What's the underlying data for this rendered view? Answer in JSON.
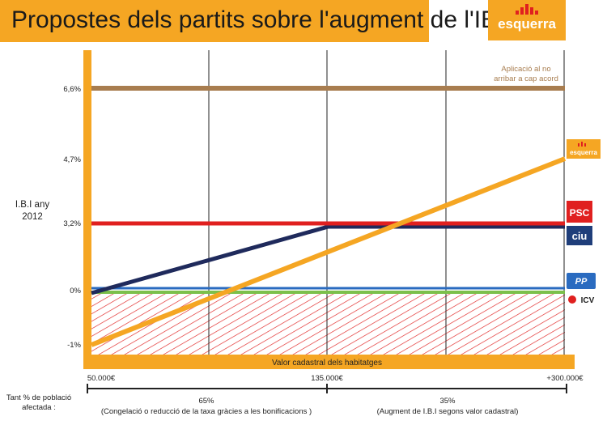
{
  "header": {
    "title": "Propostes dels partits sobre l'augment de l'IBI",
    "logo": "esquerra"
  },
  "colors": {
    "accent": "#f5a623",
    "brown": "#a87d4f",
    "red": "#e0201f",
    "navy": "#1f2a5c",
    "blue": "#2a6bc0",
    "green": "#7cc04b",
    "hatch": "#e0201f"
  },
  "chart_data": {
    "type": "line",
    "ylabel": "I.B.I any 2012",
    "xlabel": "Valor cadastral dels habitatges",
    "x_ticks": [
      "50.000€",
      "135.000€",
      "+300.000€"
    ],
    "y_ticks": [
      "6,6%",
      "4,7%",
      "3,2%",
      "0%",
      "-1%"
    ],
    "y_tick_values": [
      6.6,
      4.7,
      3.2,
      0,
      -1
    ],
    "ylim": [
      -1.4,
      7.9
    ],
    "annotation": "Aplicació al no arribar a cap acord",
    "series": [
      {
        "name": "Aplicació al no arribar a cap acord",
        "color": "#a87d4f",
        "points": [
          [
            0,
            6.6
          ],
          [
            3,
            6.6
          ]
        ]
      },
      {
        "name": "esquerra",
        "color": "#f5a623",
        "points": [
          [
            0,
            -1
          ],
          [
            3,
            4.7
          ]
        ]
      },
      {
        "name": "PSC",
        "color": "#e0201f",
        "points": [
          [
            0,
            3.2
          ],
          [
            3,
            3.2
          ]
        ]
      },
      {
        "name": "ciu",
        "color": "#1f2a5c",
        "points": [
          [
            0,
            0
          ],
          [
            1.5,
            3.2
          ],
          [
            3,
            3.2
          ]
        ]
      },
      {
        "name": "PP",
        "color": "#2a6bc0",
        "points": [
          [
            0,
            0
          ],
          [
            3,
            0
          ]
        ]
      },
      {
        "name": "ICV",
        "color": "#7cc04b",
        "points": [
          [
            0,
            0
          ],
          [
            3,
            0
          ]
        ]
      }
    ],
    "legend_labels": [
      "esquerra",
      "PSC",
      "ciu",
      "PP",
      "ICV"
    ],
    "population": {
      "label": "Tant % de població afectada :",
      "left_pct": "65%",
      "left_desc": "(Congelació o reducció de la taxa gràcies a les bonificacions )",
      "right_pct": "35%",
      "right_desc": "(Augment de I.B.I segons valor cadastral)"
    }
  }
}
